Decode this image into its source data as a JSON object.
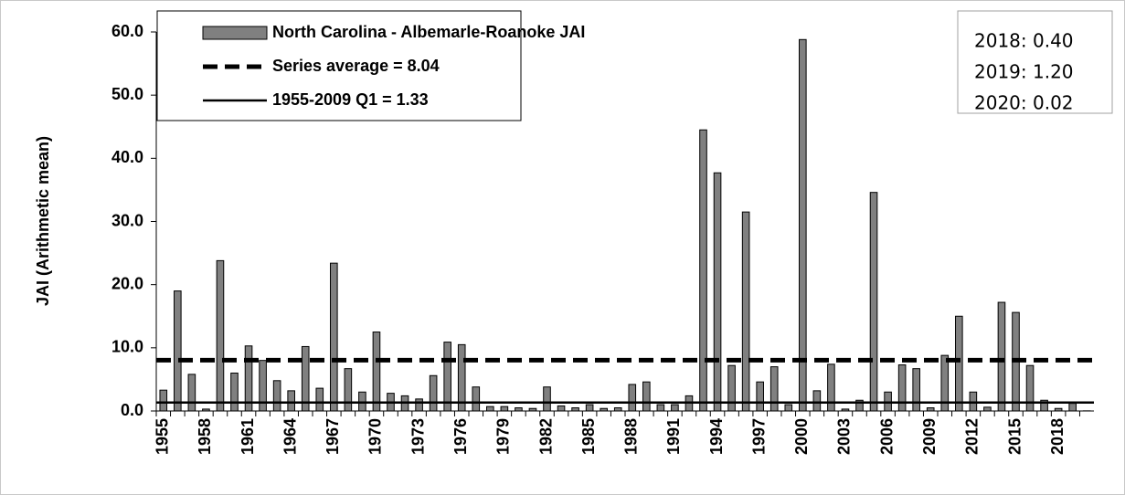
{
  "chart_data": {
    "type": "bar",
    "y_label": "JAI (Arithmetic mean)",
    "categories": [
      "1955",
      null,
      null,
      "1958",
      null,
      null,
      "1961",
      null,
      null,
      "1964",
      null,
      null,
      "1967",
      null,
      null,
      "1970",
      null,
      null,
      "1973",
      null,
      null,
      "1976",
      null,
      null,
      "1979",
      null,
      null,
      "1982",
      null,
      null,
      "1985",
      null,
      null,
      "1988",
      null,
      null,
      "1991",
      null,
      null,
      "1994",
      null,
      null,
      "1997",
      null,
      null,
      "2000",
      null,
      null,
      "2003",
      null,
      null,
      "2006",
      null,
      null,
      "2009",
      null,
      null,
      "2012",
      null,
      null,
      "2015",
      null,
      null,
      "2018",
      null,
      null
    ],
    "series": [
      {
        "name": "North Carolina - Albemarle-Roanoke JAI",
        "color": "#808080",
        "values": [
          3.3,
          19.0,
          5.8,
          0.3,
          23.8,
          6.0,
          10.3,
          8.0,
          4.8,
          3.2,
          10.2,
          3.6,
          23.4,
          6.7,
          3.0,
          12.5,
          2.8,
          2.4,
          1.9,
          5.6,
          10.9,
          10.5,
          3.8,
          0.7,
          0.7,
          0.5,
          0.4,
          3.8,
          0.8,
          0.5,
          1.0,
          0.4,
          0.5,
          4.2,
          4.6,
          1.0,
          1.0,
          2.4,
          44.5,
          37.7,
          7.2,
          31.5,
          4.6,
          7.0,
          1.0,
          58.8,
          3.2,
          7.4,
          0.3,
          1.7,
          34.6,
          3.0,
          7.3,
          6.7,
          0.5,
          8.8,
          15.0,
          3.0,
          0.6,
          17.2,
          15.6,
          7.2,
          1.7,
          0.4,
          1.2,
          0.02
        ]
      }
    ],
    "reference_lines": [
      {
        "name": "Series average = 8.04",
        "value": 8.04,
        "style": "dashed",
        "color": "#000000"
      },
      {
        "name": "1955-2009 Q1 = 1.33",
        "value": 1.33,
        "style": "solid",
        "color": "#000000"
      }
    ],
    "annotations": [
      "2018: 0.40",
      "2019: 1.20",
      "2020: 0.02"
    ],
    "ylim": [
      0,
      60
    ],
    "yticks": [
      {
        "value": 0,
        "label": "0.0"
      },
      {
        "value": 10,
        "label": "10.0"
      },
      {
        "value": 20,
        "label": "20.0"
      },
      {
        "value": 30,
        "label": "30.0"
      },
      {
        "value": 40,
        "label": "40.0"
      },
      {
        "value": 50,
        "label": "50.0"
      },
      {
        "value": 60,
        "label": "60.0"
      }
    ],
    "grid": false
  }
}
